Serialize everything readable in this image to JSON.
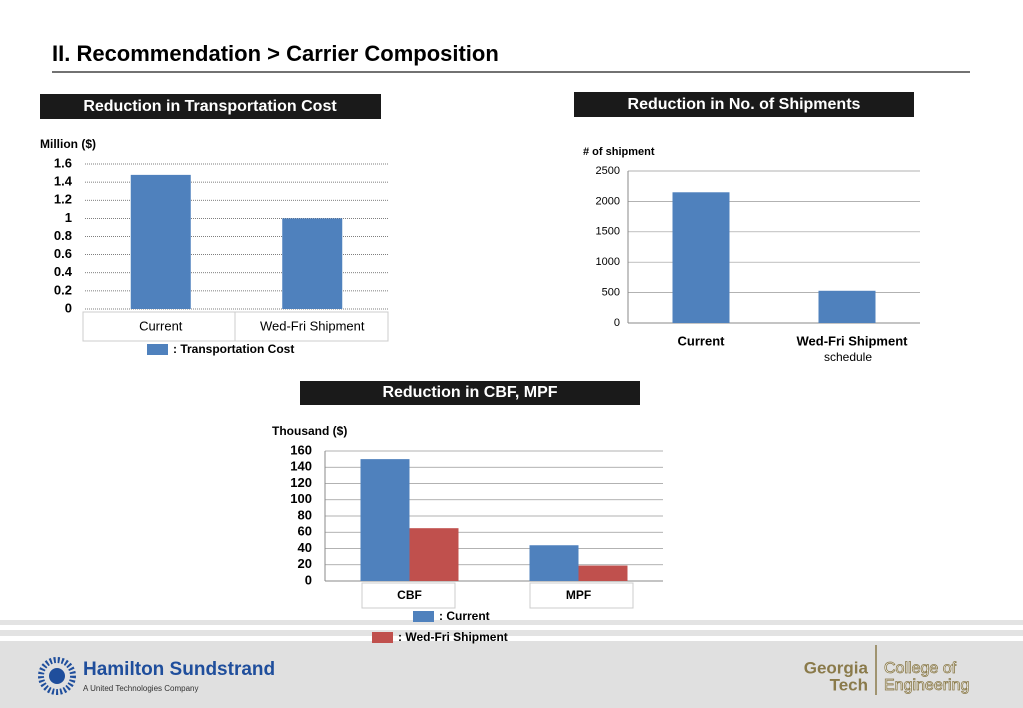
{
  "title": "II. Recommendation > Carrier Composition",
  "chart_data": [
    {
      "type": "bar",
      "title": "Reduction in Transportation Cost",
      "y_label": "Million ($)",
      "categories": [
        "Current",
        "Wed-Fri Shipment"
      ],
      "series": [
        {
          "name": ": Transportation Cost",
          "color": "#4f81bd",
          "values": [
            1.48,
            1.0
          ]
        }
      ],
      "ylim": [
        0,
        1.6
      ],
      "yticks": [
        0,
        0.2,
        0.4,
        0.6,
        0.8,
        1,
        1.2,
        1.4,
        1.6
      ],
      "grid": true
    },
    {
      "type": "bar",
      "title": "Reduction in No. of Shipments",
      "y_label": "# of shipment",
      "categories": [
        "Current",
        "Wed-Fri Shipment"
      ],
      "annotations": [
        "schedule"
      ],
      "series": [
        {
          "color": "#4f81bd",
          "values": [
            2150,
            530
          ]
        }
      ],
      "ylim": [
        0,
        2500
      ],
      "yticks": [
        0,
        500,
        1000,
        1500,
        2000,
        2500
      ],
      "grid": true
    },
    {
      "type": "bar",
      "title": "Reduction in CBF, MPF",
      "y_label": "Thousand ($)",
      "categories": [
        "CBF",
        "MPF"
      ],
      "series": [
        {
          "name": ": Current",
          "color": "#4f81bd",
          "values": [
            150,
            44
          ]
        },
        {
          "name": ": Wed-Fri Shipment",
          "color": "#c0504d",
          "values": [
            65,
            19
          ]
        }
      ],
      "ylim": [
        0,
        160
      ],
      "yticks": [
        0,
        20,
        40,
        60,
        80,
        100,
        120,
        140,
        160
      ],
      "grid": true
    }
  ],
  "footer": {
    "company": "Hamilton Sundstrand",
    "company_sub": "A United Technologies Company",
    "school_1": "Georgia",
    "school_2": "Tech",
    "college_1": "College of",
    "college_2": "Engineering"
  }
}
